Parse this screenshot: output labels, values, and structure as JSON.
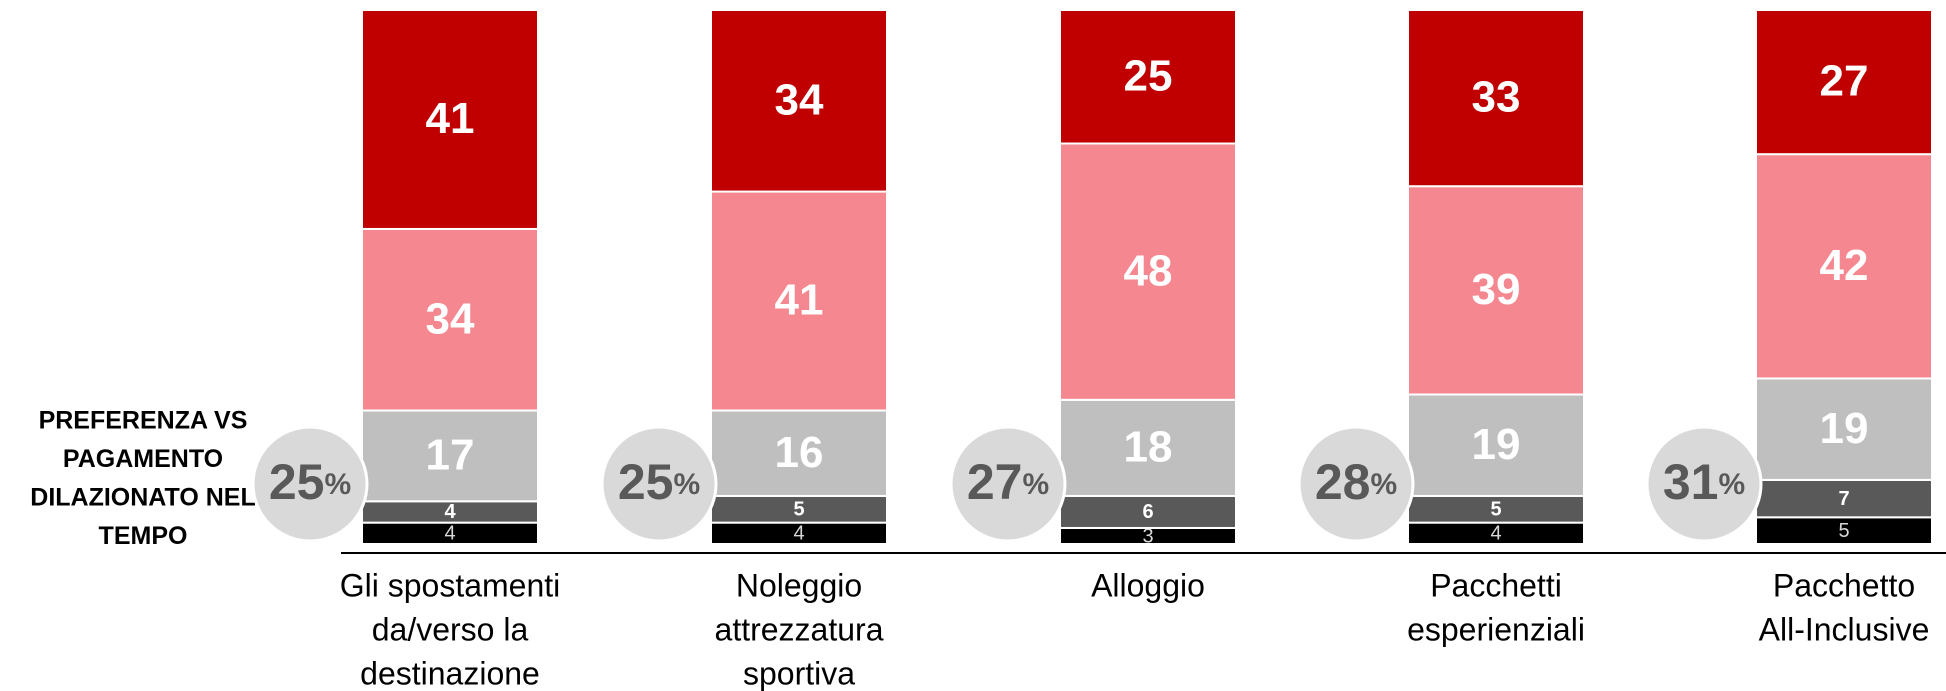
{
  "chart_data": {
    "type": "stacked_bar",
    "side_label": [
      "PREFERENZA VS",
      "PAGAMENTO",
      "DILAZIONATO NEL",
      "TEMPO"
    ],
    "categories": [
      [
        "Gli spostamenti",
        "da/verso la",
        "destinazione"
      ],
      [
        "Noleggio",
        "attrezzatura",
        "sportiva"
      ],
      [
        "Alloggio"
      ],
      [
        "Pacchetti",
        "esperienziali"
      ],
      [
        "Pacchetto",
        "All-Inclusive"
      ]
    ],
    "series": [
      {
        "color": "#000000",
        "values": [
          4,
          4,
          3,
          4,
          5
        ]
      },
      {
        "color": "#595959",
        "values": [
          4,
          5,
          6,
          5,
          7
        ]
      },
      {
        "color": "#bfbfbf",
        "values": [
          17,
          16,
          18,
          19,
          19
        ]
      },
      {
        "color": "#f4878f",
        "values": [
          34,
          41,
          48,
          39,
          42
        ]
      },
      {
        "color": "#c00000",
        "values": [
          41,
          34,
          25,
          33,
          27
        ]
      }
    ],
    "circle_values": [
      25,
      25,
      27,
      28,
      31
    ],
    "circle_unit": "%",
    "ylim": [
      0,
      100
    ]
  }
}
